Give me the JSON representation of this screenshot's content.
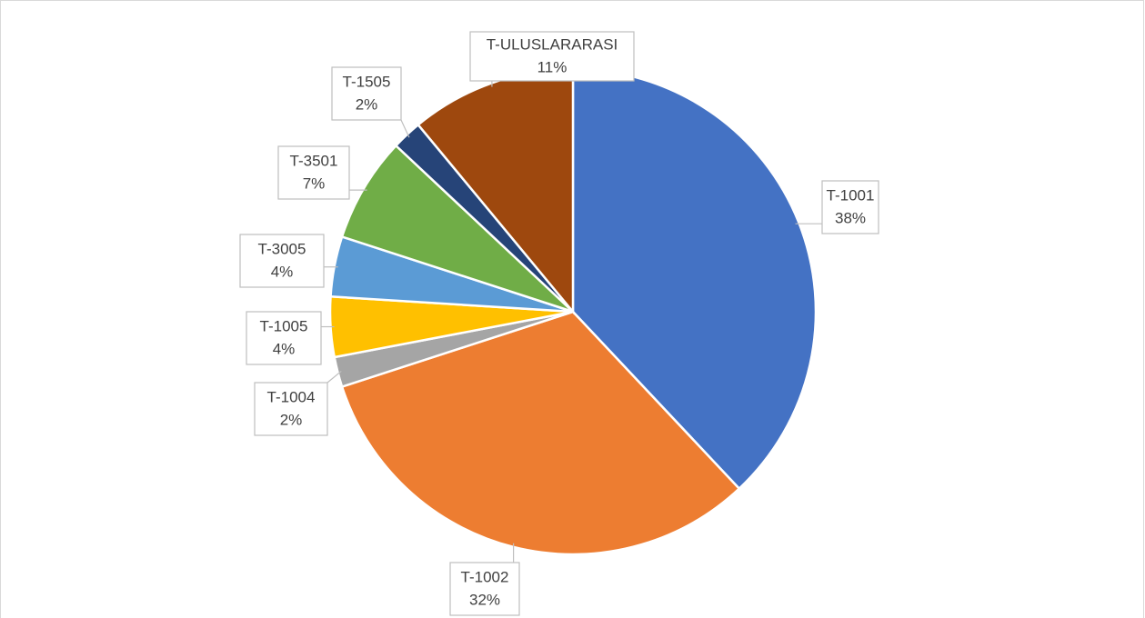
{
  "chart_data": {
    "type": "pie",
    "categories": [
      "T-1001",
      "T-1002",
      "T-1004",
      "T-1005",
      "T-3005",
      "T-3501",
      "T-1505",
      "T-ULUSLARARASI"
    ],
    "values": [
      38,
      32,
      2,
      4,
      4,
      7,
      2,
      11
    ],
    "value_labels": [
      "38%",
      "32%",
      "2%",
      "4%",
      "4%",
      "7%",
      "2%",
      "11%"
    ],
    "colors": [
      "#4472c4",
      "#ed7d31",
      "#a5a5a5",
      "#ffc000",
      "#5b9bd5",
      "#70ad47",
      "#264478",
      "#9e480e"
    ]
  }
}
